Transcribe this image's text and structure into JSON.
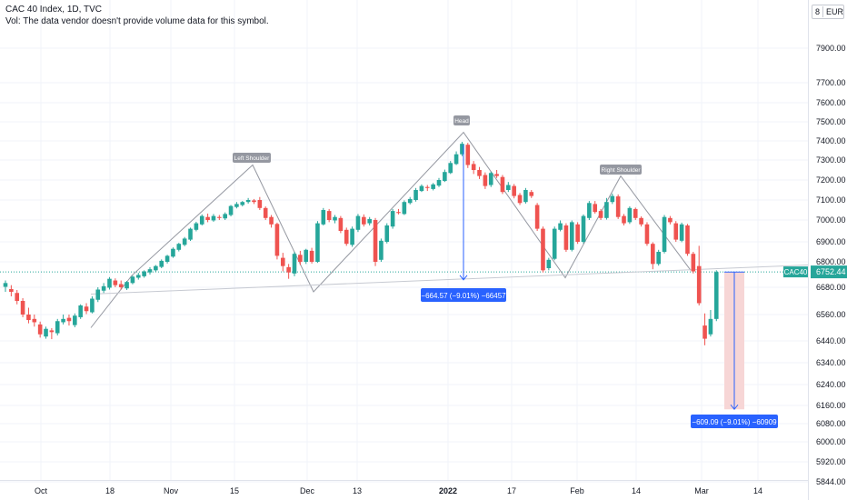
{
  "header": {
    "symbol_line": "CAC 40 Index, 1D, TVC",
    "volume_note": "Vol: The data vendor doesn't provide volume data for this symbol."
  },
  "currency": {
    "prefix": "8",
    "code": "EUR"
  },
  "price_axis": {
    "ticks": [
      "7900.00",
      "7700.00",
      "7600.00",
      "7500.00",
      "7400.00",
      "7300.00",
      "7200.00",
      "7100.00",
      "7000.00",
      "6900.00",
      "6800.00",
      "6680.00",
      "6560.00",
      "6440.00",
      "6340.00",
      "6240.00",
      "6160.00",
      "6080.00",
      "6000.00",
      "5920.00",
      "5844.00"
    ],
    "last_price": "6752.44",
    "symbol_label": "CAC40"
  },
  "time_axis": {
    "labels": [
      "Oct",
      "18",
      "Nov",
      "15",
      "Dec",
      "13",
      "2022",
      "17",
      "Feb",
      "14",
      "Mar",
      "14"
    ]
  },
  "annotations": {
    "left_shoulder": "Left Shoulder",
    "head": "Head",
    "right_shoulder": "Right Shoulder",
    "measure_1": "−664.57 (−9.01%) −66457",
    "measure_2": "−609.09 (−9.01%) −60909"
  },
  "colors": {
    "up": "#26a69a",
    "down": "#ef5350",
    "pattern_line": "#9598a1",
    "measure": "#2962ff",
    "measure_bg": "#f7d6d6",
    "last_price_line": "#26a69a",
    "tag_bg": "#9598a1"
  },
  "chart_data": {
    "type": "candlestick",
    "symbol": "CAC 40 Index",
    "interval": "1D",
    "source": "TVC",
    "currency": "EUR",
    "y_ticks": [
      7900,
      7700,
      7600,
      7500,
      7400,
      7300,
      7200,
      7100,
      7000,
      6900,
      6800,
      6680,
      6560,
      6440,
      6340,
      6240,
      6160,
      6080,
      6000,
      5920,
      5844
    ],
    "x_labels": [
      "Oct",
      "18",
      "Nov",
      "15",
      "Dec",
      "13",
      "2022",
      "17",
      "Feb",
      "14",
      "Mar",
      "14"
    ],
    "last_price": 6752.44,
    "candles": [
      [
        6682,
        6700,
        6660,
        6712
      ],
      [
        6672,
        6660,
        6640,
        6690
      ],
      [
        6655,
        6620,
        6605,
        6668
      ],
      [
        6620,
        6560,
        6548,
        6632
      ],
      [
        6560,
        6535,
        6520,
        6590
      ],
      [
        6540,
        6525,
        6505,
        6560
      ],
      [
        6515,
        6470,
        6455,
        6528
      ],
      [
        6460,
        6495,
        6450,
        6505
      ],
      [
        6488,
        6480,
        6448,
        6498
      ],
      [
        6475,
        6530,
        6465,
        6540
      ],
      [
        6525,
        6540,
        6515,
        6560
      ],
      [
        6545,
        6530,
        6510,
        6560
      ],
      [
        6512,
        6555,
        6502,
        6565
      ],
      [
        6548,
        6600,
        6540,
        6605
      ],
      [
        6595,
        6575,
        6562,
        6610
      ],
      [
        6570,
        6630,
        6565,
        6640
      ],
      [
        6625,
        6670,
        6615,
        6680
      ],
      [
        6665,
        6685,
        6655,
        6700
      ],
      [
        6678,
        6720,
        6670,
        6728
      ],
      [
        6712,
        6690,
        6680,
        6722
      ],
      [
        6695,
        6680,
        6670,
        6712
      ],
      [
        6675,
        6705,
        6668,
        6710
      ],
      [
        6700,
        6730,
        6694,
        6735
      ],
      [
        6725,
        6738,
        6716,
        6748
      ],
      [
        6732,
        6755,
        6725,
        6760
      ],
      [
        6750,
        6765,
        6740,
        6775
      ],
      [
        6760,
        6780,
        6752,
        6785
      ],
      [
        6776,
        6805,
        6770,
        6812
      ],
      [
        6800,
        6830,
        6792,
        6835
      ],
      [
        6826,
        6865,
        6820,
        6872
      ],
      [
        6860,
        6890,
        6852,
        6895
      ],
      [
        6885,
        6915,
        6878,
        6922
      ],
      [
        6910,
        6960,
        6904,
        6965
      ],
      [
        6955,
        6985,
        6948,
        6992
      ],
      [
        6980,
        7020,
        6975,
        7028
      ],
      [
        7015,
        7000,
        6990,
        7032
      ],
      [
        6998,
        7020,
        6992,
        7030
      ],
      [
        7015,
        7010,
        7000,
        7025
      ],
      [
        7008,
        7030,
        7000,
        7038
      ],
      [
        7025,
        7070,
        7018,
        7075
      ],
      [
        7065,
        7080,
        7058,
        7090
      ],
      [
        7075,
        7090,
        7068,
        7095
      ],
      [
        7090,
        7100,
        7082,
        7110
      ],
      [
        7098,
        7090,
        7080,
        7105
      ],
      [
        7100,
        7060,
        7050,
        7115
      ],
      [
        7060,
        7010,
        7000,
        7068
      ],
      [
        7015,
        6980,
        6965,
        7025
      ],
      [
        6982,
        6830,
        6812,
        6988
      ],
      [
        6820,
        6780,
        6755,
        6845
      ],
      [
        6775,
        6750,
        6720,
        6790
      ],
      [
        6745,
        6840,
        6732,
        6850
      ],
      [
        6835,
        6800,
        6785,
        6855
      ],
      [
        6800,
        6860,
        6790,
        6865
      ],
      [
        6855,
        6800,
        6792,
        6870
      ],
      [
        6800,
        6985,
        6795,
        6995
      ],
      [
        6980,
        7050,
        6975,
        7060
      ],
      [
        7045,
        7000,
        6990,
        7055
      ],
      [
        6998,
        7015,
        6985,
        7025
      ],
      [
        7010,
        6950,
        6940,
        7020
      ],
      [
        6955,
        6890,
        6880,
        6965
      ],
      [
        6885,
        6960,
        6875,
        6970
      ],
      [
        6955,
        7020,
        6945,
        7030
      ],
      [
        7015,
        6980,
        6970,
        7028
      ],
      [
        6985,
        7005,
        6975,
        7015
      ],
      [
        7000,
        6800,
        6780,
        7010
      ],
      [
        6810,
        6905,
        6800,
        6915
      ],
      [
        6900,
        6975,
        6892,
        6985
      ],
      [
        6970,
        7045,
        6960,
        7055
      ],
      [
        7040,
        7035,
        7028,
        7055
      ],
      [
        7030,
        7090,
        7025,
        7098
      ],
      [
        7085,
        7105,
        7078,
        7115
      ],
      [
        7100,
        7150,
        7092,
        7160
      ],
      [
        7145,
        7170,
        7140,
        7178
      ],
      [
        7165,
        7160,
        7145,
        7175
      ],
      [
        7155,
        7178,
        7148,
        7185
      ],
      [
        7172,
        7200,
        7165,
        7210
      ],
      [
        7195,
        7240,
        7190,
        7252
      ],
      [
        7235,
        7285,
        7230,
        7295
      ],
      [
        7280,
        7330,
        7275,
        7345
      ],
      [
        7330,
        7385,
        7320,
        7395
      ],
      [
        7380,
        7275,
        7260,
        7390
      ],
      [
        7280,
        7250,
        7230,
        7295
      ],
      [
        7250,
        7220,
        7205,
        7265
      ],
      [
        7225,
        7170,
        7155,
        7238
      ],
      [
        7175,
        7235,
        7165,
        7242
      ],
      [
        7230,
        7220,
        7210,
        7250
      ],
      [
        7215,
        7140,
        7130,
        7225
      ],
      [
        7150,
        7175,
        7140,
        7190
      ],
      [
        7170,
        7120,
        7108,
        7180
      ],
      [
        7125,
        7085,
        7075,
        7135
      ],
      [
        7090,
        7150,
        7082,
        7160
      ],
      [
        7140,
        7120,
        7110,
        7150
      ],
      [
        7075,
        6960,
        6950,
        7085
      ],
      [
        6960,
        6760,
        6750,
        6970
      ],
      [
        6770,
        6810,
        6760,
        6820
      ],
      [
        6815,
        6960,
        6808,
        6970
      ],
      [
        6955,
        6985,
        6948,
        6998
      ],
      [
        6975,
        6860,
        6850,
        6985
      ],
      [
        6860,
        6990,
        6852,
        6998
      ],
      [
        6980,
        6900,
        6890,
        6990
      ],
      [
        6900,
        7020,
        6892,
        7028
      ],
      [
        7010,
        7085,
        7000,
        7095
      ],
      [
        7080,
        7040,
        7032,
        7095
      ],
      [
        7045,
        7010,
        7000,
        7055
      ],
      [
        7010,
        7090,
        7002,
        7110
      ],
      [
        7090,
        7120,
        7080,
        7132
      ],
      [
        7118,
        7015,
        7005,
        7128
      ],
      [
        7020,
        6985,
        6975,
        7030
      ],
      [
        6990,
        7060,
        6982,
        7068
      ],
      [
        7055,
        7010,
        7000,
        7062
      ],
      [
        7010,
        6980,
        6970,
        7018
      ],
      [
        6980,
        6890,
        6880,
        6990
      ],
      [
        6890,
        6790,
        6765,
        6898
      ],
      [
        6790,
        6850,
        6782,
        6860
      ],
      [
        6850,
        7015,
        6842,
        7025
      ],
      [
        7010,
        6990,
        6980,
        7020
      ],
      [
        6985,
        6910,
        6900,
        6995
      ],
      [
        6905,
        6980,
        6898,
        6988
      ],
      [
        6975,
        6840,
        6830,
        6982
      ],
      [
        6840,
        6755,
        6745,
        6850
      ],
      [
        6780,
        6610,
        6600,
        6880
      ],
      [
        6510,
        6450,
        6420,
        6565
      ],
      [
        6470,
        6540,
        6460,
        6580
      ],
      [
        6540,
        6752,
        6530,
        6760
      ]
    ],
    "pattern": {
      "labels": [
        "Left Shoulder",
        "Head",
        "Right Shoulder"
      ],
      "polyline": [
        [
          6500,
          null
        ],
        [
          6735,
          null
        ],
        [
          7275,
          null
        ],
        [
          6660,
          null
        ],
        [
          7445,
          null
        ],
        [
          6725,
          null
        ],
        [
          7220,
          null
        ],
        [
          6760,
          null
        ]
      ],
      "neckline": [
        6650,
        6785
      ]
    },
    "measures": [
      {
        "label": "−664.57 (−9.01%) −66457",
        "from": 7380,
        "to": 6715
      },
      {
        "label": "−609.09 (−9.01%) −60909",
        "from": 6752,
        "to": 6143
      }
    ]
  }
}
